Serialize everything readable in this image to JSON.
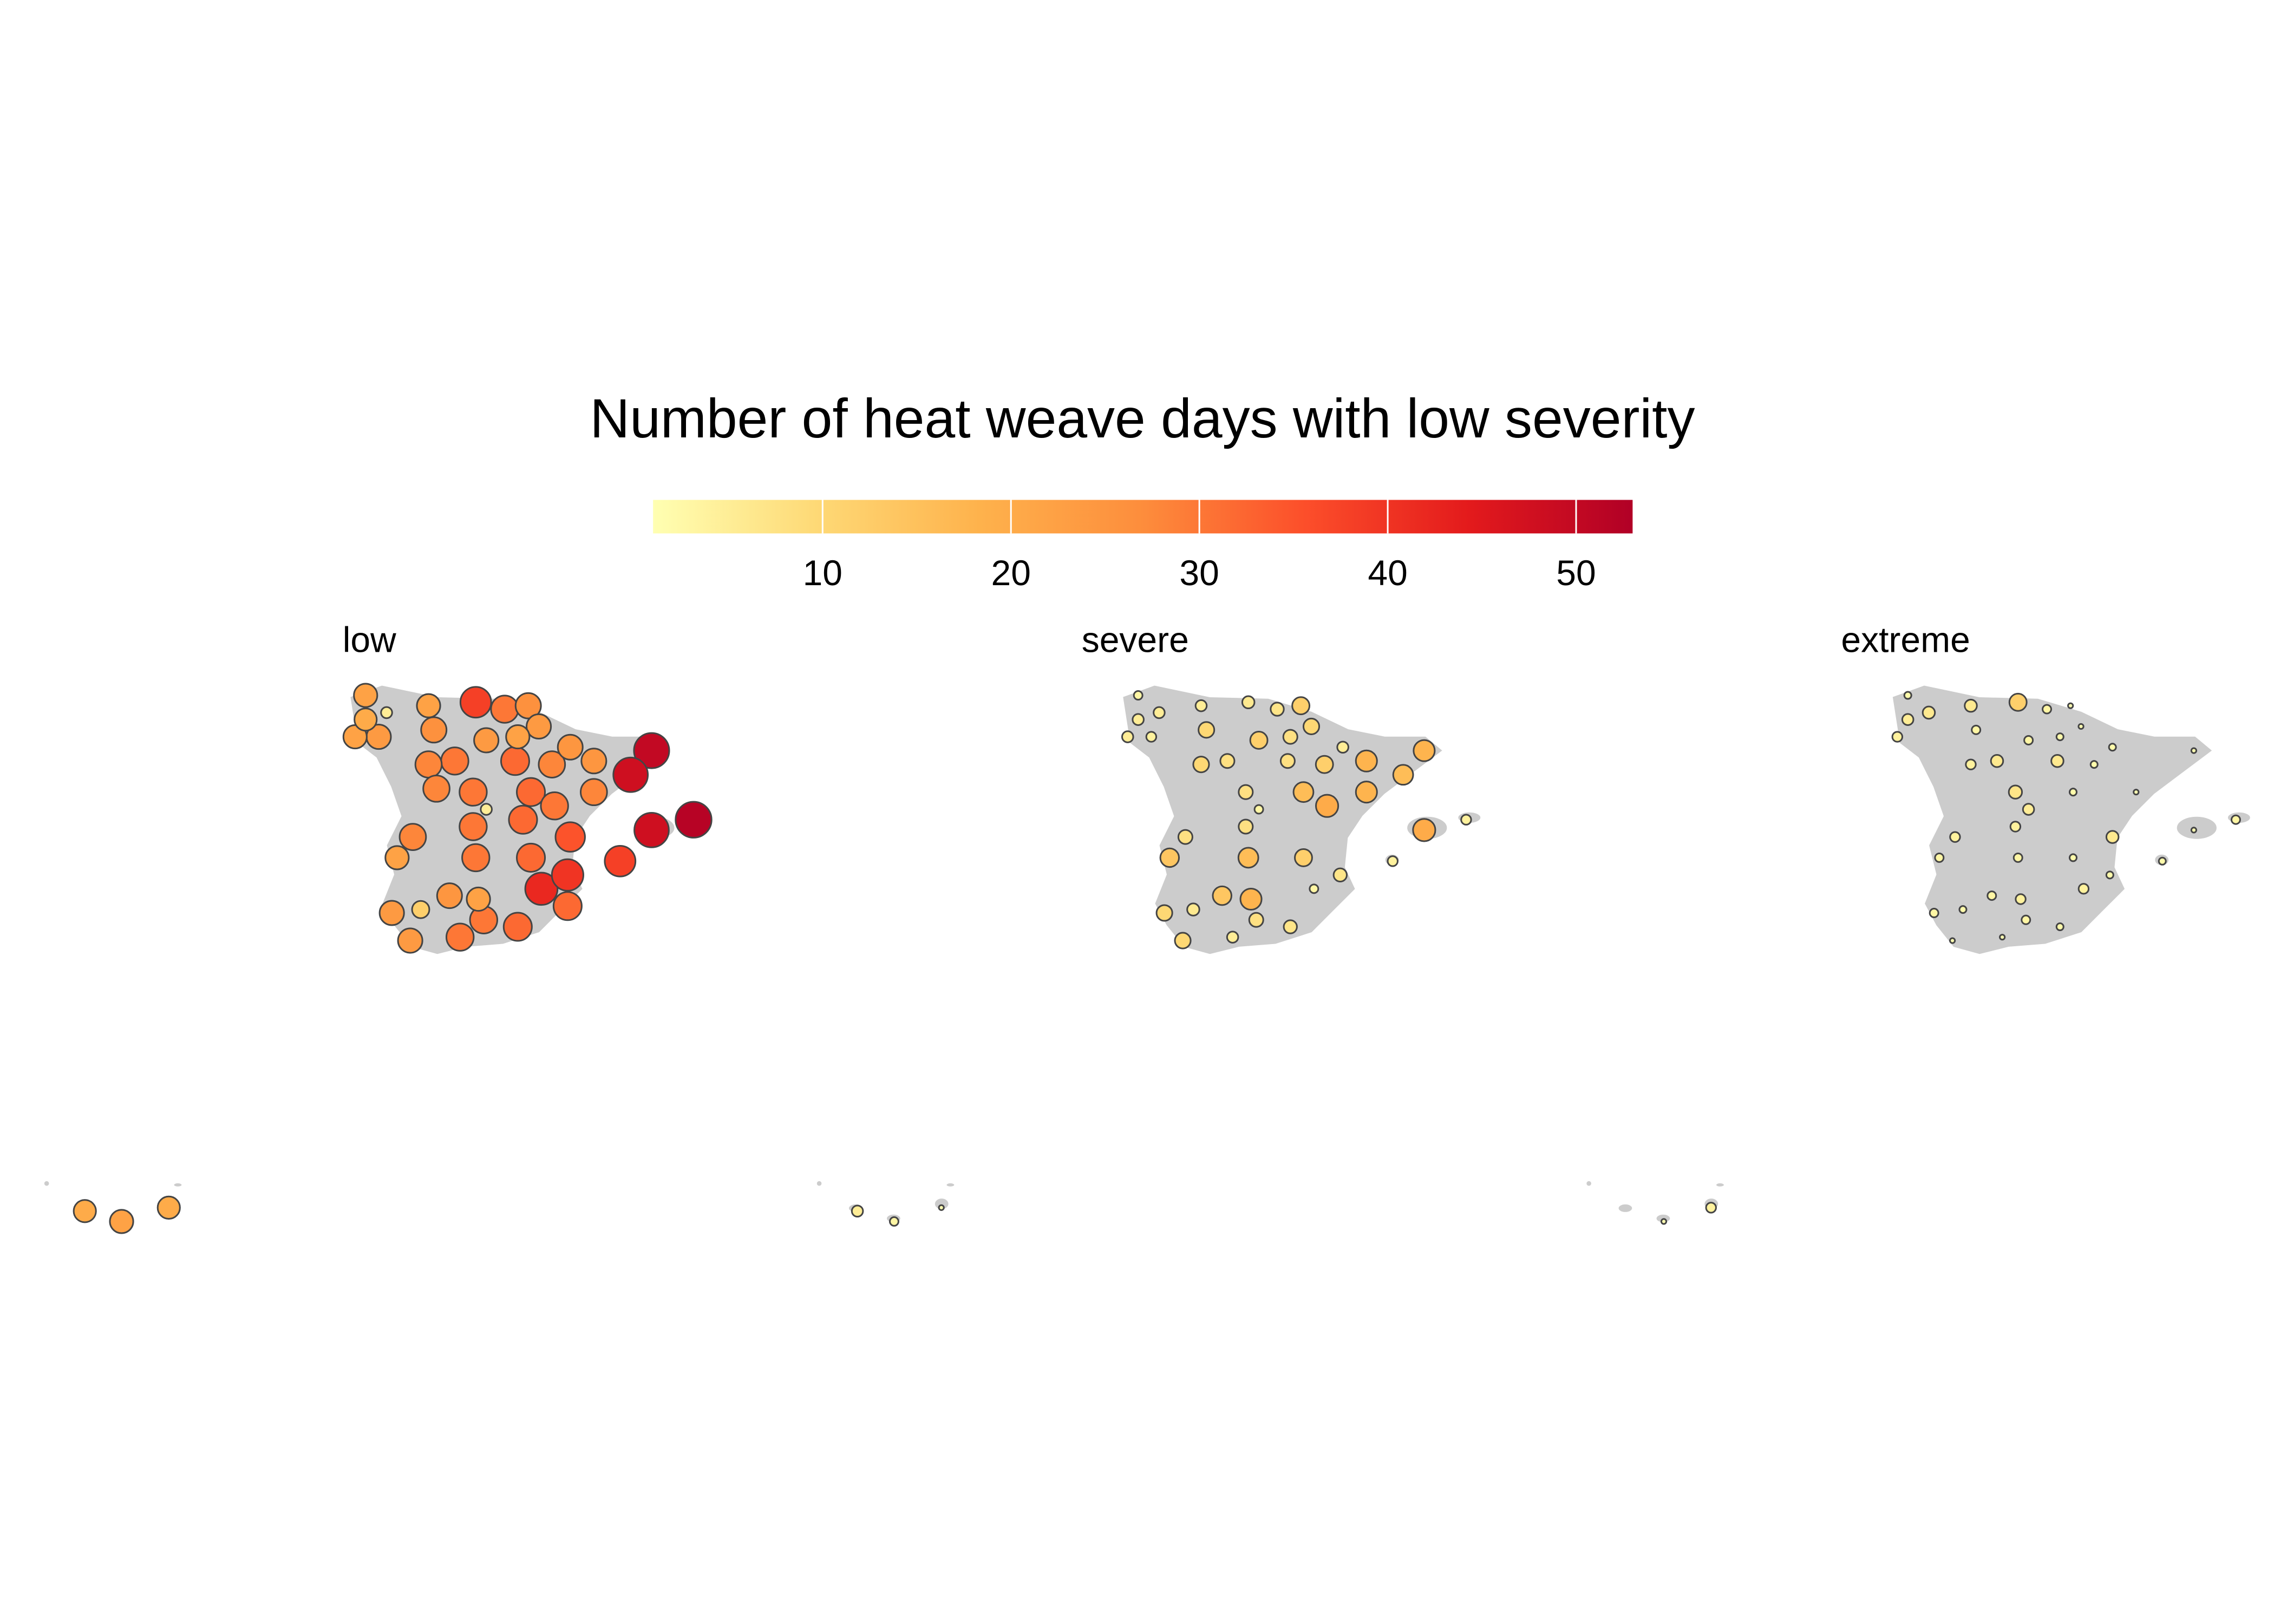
{
  "chart_data": {
    "type": "bubble-map",
    "title": "Number of heat weave days with low severity",
    "color_limits": [
      1,
      53
    ],
    "color_ticks": [
      10,
      20,
      30,
      40,
      50
    ],
    "colors": [
      "#ffffb2",
      "#fed976",
      "#feb24c",
      "#fd8d3c",
      "#fc4e2a",
      "#e31a1c",
      "#b10026"
    ],
    "land_color": "#cccccc",
    "lon": [
      -8.7,
      -7.9,
      -8.7,
      -9.1,
      -8.2,
      -6.3,
      -4.5,
      -3.4,
      -2.5,
      -2.1,
      -6.1,
      -4.1,
      -2.9,
      -0.9,
      2.2,
      -6.3,
      -5.3,
      -3.0,
      -1.6,
      0.0,
      1.4,
      -6.0,
      -4.6,
      -2.4,
      -1.5,
      0.0,
      -4.1,
      -2.7,
      -6.9,
      -4.6,
      -0.9,
      3.8,
      2.2,
      1.0,
      -7.5,
      -4.5,
      -2.4,
      -1.0,
      -2.0,
      -5.5,
      -4.4,
      -7.7,
      -6.6,
      -1.0,
      -4.2,
      -7.0,
      -5.1,
      -2.9,
      -17.4,
      -16.0,
      -14.2
    ],
    "lat": [
      43.5,
      43.0,
      42.8,
      42.3,
      42.3,
      43.2,
      43.3,
      43.1,
      43.2,
      42.6,
      42.5,
      42.2,
      42.3,
      42.0,
      41.9,
      41.5,
      41.6,
      41.6,
      41.5,
      41.6,
      41.2,
      40.8,
      40.7,
      40.7,
      40.3,
      40.7,
      40.2,
      39.9,
      39.4,
      39.7,
      39.4,
      39.9,
      39.6,
      38.7,
      38.8,
      38.8,
      38.8,
      38.3,
      37.9,
      37.7,
      37.6,
      37.2,
      37.3,
      37.4,
      37.0,
      36.4,
      36.5,
      36.8,
      28.4,
      28.1,
      28.5
    ],
    "panels": [
      {
        "name": "low",
        "values": [
          22,
          5,
          20,
          22,
          24,
          22,
          38,
          30,
          26,
          24,
          26,
          24,
          22,
          25,
          50,
          28,
          30,
          32,
          28,
          25,
          48,
          28,
          30,
          32,
          30,
          28,
          5,
          32,
          28,
          30,
          35,
          52,
          48,
          38,
          22,
          30,
          32,
          40,
          42,
          25,
          22,
          24,
          12,
          32,
          30,
          24,
          30,
          32,
          20,
          22,
          20
        ]
      },
      {
        "name": "severe",
        "values": [
          3,
          5,
          5,
          5,
          4,
          5,
          6,
          7,
          12,
          10,
          10,
          12,
          8,
          5,
          18,
          10,
          8,
          8,
          12,
          18,
          16,
          null,
          8,
          16,
          20,
          18,
          3,
          null,
          8,
          8,
          null,
          4,
          20,
          4,
          14,
          16,
          12,
          7,
          3,
          14,
          18,
          10,
          6,
          null,
          8,
          10,
          5,
          7,
          5,
          3,
          1
        ]
      },
      {
        "name": "extreme",
        "values": [
          2,
          6,
          5,
          4,
          null,
          6,
          12,
          3,
          1,
          1,
          3,
          3,
          2,
          2,
          1,
          4,
          6,
          6,
          2,
          null,
          null,
          null,
          7,
          2,
          null,
          1,
          5,
          null,
          4,
          4,
          6,
          3,
          1,
          2,
          3,
          3,
          2,
          2,
          4,
          3,
          4,
          3,
          2,
          null,
          3,
          1,
          1,
          2,
          null,
          1,
          4
        ]
      }
    ]
  }
}
